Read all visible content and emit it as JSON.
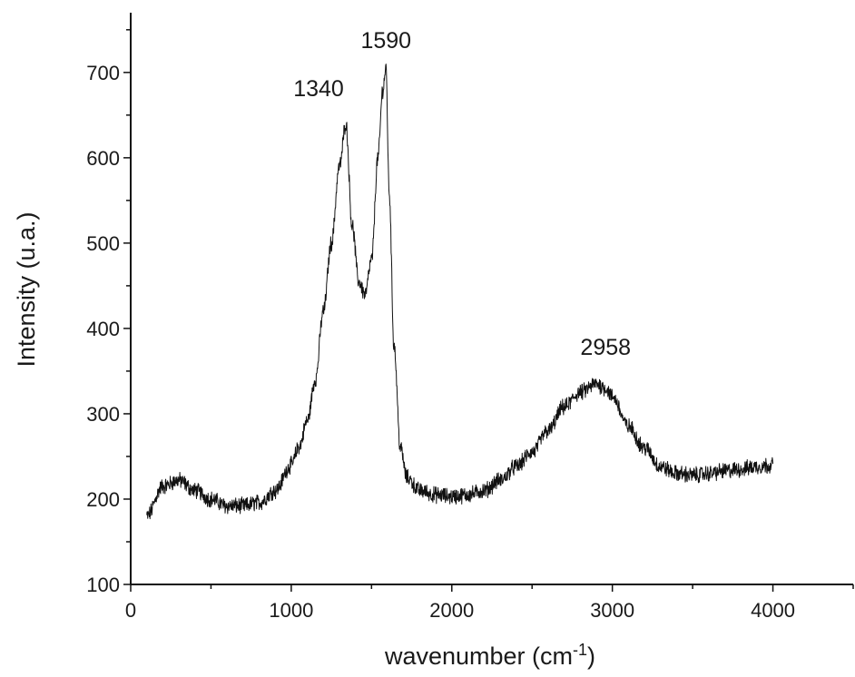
{
  "chart_data": {
    "type": "line",
    "title": "",
    "xlabel": "wavenumber (cm",
    "xlabel_sup": "-1",
    "xlabel_suffix": ")",
    "ylabel": "Intensity (u.a.)",
    "xlim": [
      0,
      4500
    ],
    "ylim": [
      100,
      770
    ],
    "xticks": [
      0,
      1000,
      2000,
      3000,
      4000
    ],
    "yticks": [
      100,
      200,
      300,
      400,
      500,
      600,
      700
    ],
    "grid": false,
    "line_color": "#111111",
    "series": [
      {
        "x": [
          100,
          200,
          300,
          400,
          500,
          600,
          700,
          800,
          900,
          1000,
          1050,
          1100,
          1150,
          1200,
          1250,
          1300,
          1340,
          1380,
          1420,
          1460,
          1500,
          1540,
          1570,
          1590,
          1610,
          1640,
          1680,
          1720,
          1800,
          1900,
          2000,
          2100,
          2200,
          2300,
          2400,
          2500,
          2600,
          2700,
          2800,
          2900,
          2958,
          3000,
          3100,
          3200,
          3300,
          3400,
          3500,
          3600,
          3700,
          3800,
          3900,
          4000
        ],
        "y": [
          180,
          215,
          222,
          210,
          200,
          192,
          192,
          196,
          210,
          240,
          262,
          292,
          340,
          420,
          500,
          590,
          640,
          520,
          455,
          440,
          480,
          600,
          680,
          705,
          560,
          380,
          260,
          225,
          210,
          205,
          203,
          205,
          210,
          222,
          238,
          255,
          280,
          308,
          325,
          335,
          330,
          320,
          285,
          260,
          238,
          230,
          228,
          230,
          233,
          235,
          238,
          240
        ]
      }
    ],
    "annotations": [
      {
        "text": "1340",
        "x": 1340,
        "y": 640
      },
      {
        "text": "1590",
        "x": 1590,
        "y": 705
      },
      {
        "text": "2958",
        "x": 2958,
        "y": 335
      }
    ]
  }
}
